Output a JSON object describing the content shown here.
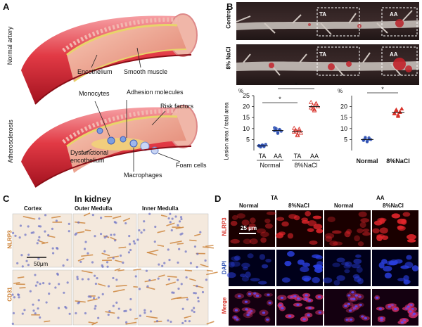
{
  "panels": {
    "A": "A",
    "B": "B",
    "C": "C",
    "D": "D"
  },
  "panelA": {
    "normal_row_label": "Normal artery",
    "athero_row_label": "Atherosclerosis",
    "normal_labels": [
      "Encothelium",
      "Smooth muscle"
    ],
    "athero_labels": {
      "monocytes": "Monocytes",
      "adhesion": "Adhesion molecules",
      "risk": "Risk factors",
      "dysfunctional": "Dysfunctional\nencothelium",
      "macrophages": "Macrophages",
      "foam": "Foam cells"
    }
  },
  "panelB": {
    "row_labels": [
      "Control",
      "8% NaCl"
    ],
    "region_labels": [
      "TA",
      "AA"
    ],
    "ylabel": "Lesion area / total area",
    "unit": "%",
    "sig": "*"
  },
  "chart_data": [
    {
      "type": "scatter",
      "ylabel": "Lesion area / total area",
      "unit": "%",
      "ylim": [
        0,
        25
      ],
      "yticks": [
        5,
        10,
        15,
        20,
        25
      ],
      "groups": [
        "Normal",
        "8%NaCl"
      ],
      "categories": [
        "TA",
        "AA",
        "TA",
        "AA"
      ],
      "series": [
        {
          "values": [
            2.2,
            2.0,
            2.5,
            1.8,
            2.8,
            2.1,
            1.6,
            2.4,
            2.0
          ],
          "color": "#2b4fb3"
        },
        {
          "values": [
            9.0,
            10.0,
            8.2,
            9.6,
            8.8,
            10.4,
            9.2,
            7.8,
            9.4
          ],
          "color": "#2b4fb3"
        },
        {
          "values": [
            8.5,
            9.2,
            7.2,
            9.8,
            8.0,
            10.2,
            8.6,
            6.8,
            9.0
          ],
          "color": "#d8322a"
        },
        {
          "values": [
            19.5,
            20.4,
            18.6,
            21.2,
            20.0,
            22.0,
            19.0,
            18.2,
            21.5
          ],
          "color": "#d8322a"
        }
      ],
      "means": [
        2.1,
        9.1,
        8.6,
        20.0
      ],
      "significance": [
        {
          "from": 0,
          "to": 2,
          "label": "*"
        },
        {
          "from": 1,
          "to": 3,
          "label": "*"
        }
      ]
    },
    {
      "type": "scatter",
      "unit": "%",
      "ylim": [
        0,
        25
      ],
      "yticks": [
        5,
        10,
        15,
        20
      ],
      "categories": [
        "Normal",
        "8%NaCl"
      ],
      "series": [
        {
          "values": [
            4.6,
            5.4,
            4.2,
            5.8,
            5.0,
            4.8,
            6.0,
            4.0,
            5.2
          ],
          "color": "#2b4fb3"
        },
        {
          "values": [
            17.0,
            18.2,
            16.2,
            17.6,
            19.0,
            16.8,
            18.6,
            15.6,
            17.4
          ],
          "color": "#d8322a"
        }
      ],
      "means": [
        5.0,
        17.4
      ],
      "significance": [
        {
          "from": 0,
          "to": 1,
          "label": "*"
        }
      ]
    }
  ],
  "panelC": {
    "title": "In kidney",
    "columns": [
      "Cortex",
      "Outer Medulla",
      "Inner Medulla"
    ],
    "rows": [
      "NLRP3",
      "CD31"
    ],
    "scalebar": "50μm"
  },
  "panelD": {
    "regions": [
      "TA",
      "AA"
    ],
    "columns": [
      "Normal",
      "8%NaCl",
      "Normal",
      "8%NaCl"
    ],
    "rows": [
      "NLRP3",
      "DAPI",
      "Merge"
    ],
    "scalebar": "25 μm"
  },
  "colors": {
    "red": "#d8322a",
    "blue": "#2b4fb3",
    "kidney_title": "#1a2aa8",
    "stain": "#c97a2a"
  }
}
